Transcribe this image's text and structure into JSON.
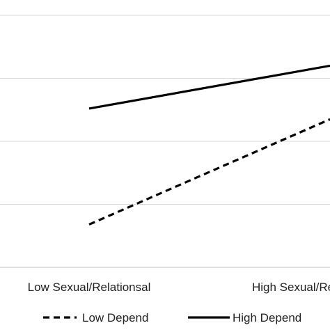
{
  "chart_data": {
    "type": "line",
    "title": "",
    "xlabel": "",
    "ylabel": "",
    "categories": [
      "Low Sexual/Relationsal",
      "High Sexual/Relational"
    ],
    "ylim": [
      0,
      4
    ],
    "gridlines": [
      1,
      2,
      3,
      4
    ],
    "grid": true,
    "legend": "bottom",
    "series": [
      {
        "name": "Low Depend",
        "values": [
          0.68,
          2.35
        ],
        "style": "dashed",
        "color": "#000000"
      },
      {
        "name": "High Depend",
        "values": [
          2.52,
          3.2
        ],
        "style": "solid",
        "color": "#000000"
      }
    ]
  }
}
